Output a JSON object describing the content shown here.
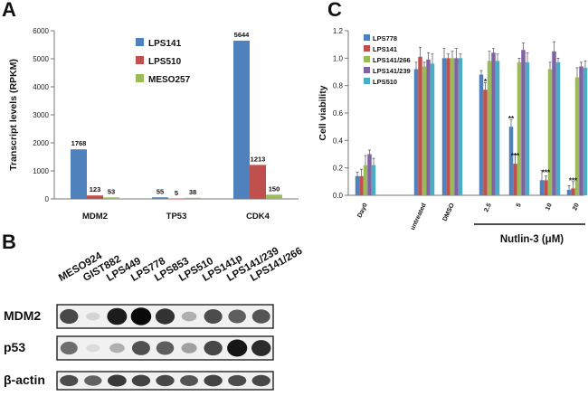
{
  "panels": {
    "a": "A",
    "b": "B",
    "c": "C"
  },
  "colors": {
    "blue": "#4f81bd",
    "red": "#c0504d",
    "green": "#9bbb59",
    "purple": "#8064a2",
    "cyan": "#4bacc6"
  },
  "chart_data": [
    {
      "type": "bar",
      "panel": "A",
      "ylabel": "Transcript levels (RPKM)",
      "categories": [
        "MDM2",
        "TP53",
        "CDK4"
      ],
      "ylim": [
        0,
        6000
      ],
      "yticks": [
        "0",
        "1000",
        "2000",
        "3000",
        "4000",
        "5000",
        "6000"
      ],
      "series": [
        {
          "name": "LPS141",
          "values": [
            1768,
            55,
            5644
          ],
          "labels": [
            "1768",
            "55",
            "5644"
          ]
        },
        {
          "name": "LPS510",
          "values": [
            123,
            5,
            1213
          ],
          "labels": [
            "123",
            "5",
            "1213"
          ]
        },
        {
          "name": "MESO257",
          "values": [
            53,
            38,
            150
          ],
          "labels": [
            "53",
            "38",
            "150"
          ]
        }
      ],
      "legend": "top-right"
    },
    {
      "type": "bar",
      "panel": "C",
      "ylabel": "Cell viability",
      "categories": [
        "Day0",
        "untreated",
        "DMSO",
        "2.5",
        "5",
        "10",
        "20"
      ],
      "ylim": [
        0,
        1.2
      ],
      "yticks": [
        "0.0",
        "0.2",
        "0.4",
        "0.6",
        "0.8",
        "1.0",
        "1.2"
      ],
      "series": [
        {
          "name": "LPS778",
          "values": [
            0.14,
            0.92,
            1.0,
            0.88,
            0.5,
            0.11,
            0.04
          ]
        },
        {
          "name": "LPS141",
          "values": [
            0.14,
            1.01,
            1.0,
            0.77,
            0.23,
            0.11,
            0.05
          ]
        },
        {
          "name": "LPS141/266",
          "values": [
            0.22,
            0.94,
            1.0,
            0.98,
            0.97,
            0.92,
            0.86
          ]
        },
        {
          "name": "LPS141/239",
          "values": [
            0.3,
            0.99,
            1.0,
            1.04,
            1.06,
            1.05,
            0.94
          ]
        },
        {
          "name": "LPS510",
          "values": [
            0.22,
            0.96,
            1.0,
            0.98,
            0.97,
            0.97,
            0.93
          ]
        }
      ],
      "significance": [
        {
          "category": "2.5",
          "series": "LPS141",
          "text": "*"
        },
        {
          "category": "5",
          "series": "LPS778",
          "text": "**"
        },
        {
          "category": "5",
          "series": "LPS141",
          "text": "***"
        },
        {
          "category": "10",
          "series": "LPS141",
          "text": "***"
        },
        {
          "category": "20",
          "series": "LPS141",
          "text": "***"
        }
      ],
      "treatment_label": "Nutlin-3 (μM)",
      "legend": "top-left"
    }
  ],
  "blot": {
    "lanes": [
      "MESO924",
      "GIST882",
      "LPS449",
      "LPS778",
      "LPS853",
      "LPS510",
      "LPS141p",
      "LPS141/239",
      "LPS141/266"
    ],
    "rows": [
      {
        "label": "MDM2",
        "intensities": [
          0.72,
          0.08,
          0.92,
          1.0,
          0.82,
          0.25,
          0.7,
          0.62,
          0.66
        ]
      },
      {
        "label": "p53",
        "intensities": [
          0.55,
          0.05,
          0.25,
          0.68,
          0.62,
          0.32,
          0.72,
          0.95,
          0.85
        ]
      },
      {
        "label": "β-actin",
        "intensities": [
          0.7,
          0.6,
          0.78,
          0.74,
          0.72,
          0.66,
          0.74,
          0.7,
          0.72
        ]
      }
    ]
  }
}
